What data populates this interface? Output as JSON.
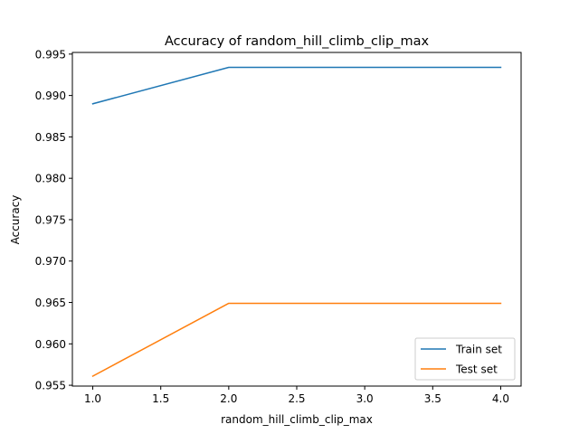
{
  "chart_data": {
    "type": "line",
    "title": "Accuracy of random_hill_climb_clip_max",
    "xlabel": "random_hill_climb_clip_max",
    "ylabel": "Accuracy",
    "xlim": [
      0.85,
      4.15
    ],
    "ylim": [
      0.9549,
      0.9952
    ],
    "xticks": [
      "1.0",
      "1.5",
      "2.0",
      "2.5",
      "3.0",
      "3.5",
      "4.0"
    ],
    "yticks": [
      "0.955",
      "0.960",
      "0.965",
      "0.970",
      "0.975",
      "0.980",
      "0.985",
      "0.990",
      "0.995"
    ],
    "x": [
      1,
      2,
      3,
      4
    ],
    "series": [
      {
        "name": "Train set",
        "color": "#1f77b4",
        "values": [
          0.989,
          0.9934,
          0.9934,
          0.9934
        ]
      },
      {
        "name": "Test set",
        "color": "#ff7f0e",
        "values": [
          0.9561,
          0.9649,
          0.9649,
          0.9649
        ]
      }
    ],
    "grid": false,
    "legend": "lower-right"
  }
}
